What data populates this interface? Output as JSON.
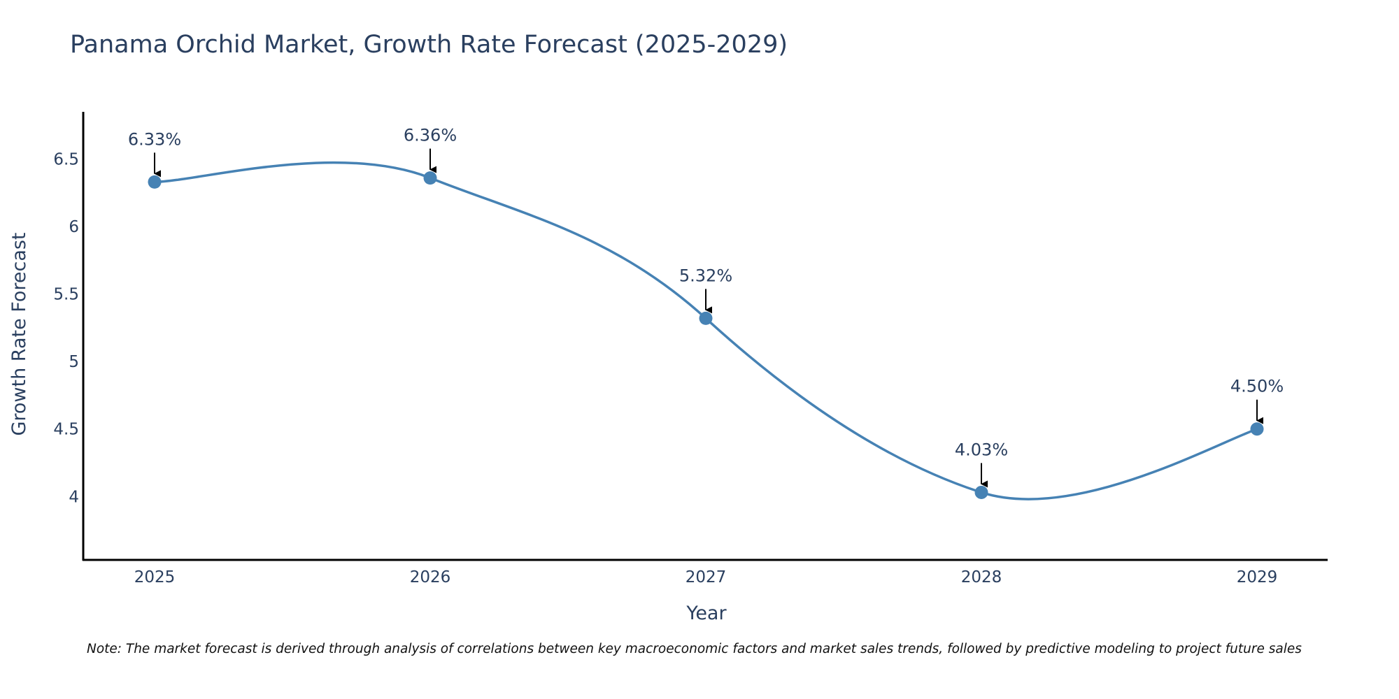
{
  "chart_data": {
    "type": "line",
    "title": "Panama Orchid Market, Growth Rate Forecast (2025-2029)",
    "xlabel": "Year",
    "ylabel": "Growth Rate Forecast",
    "x": [
      "2025",
      "2026",
      "2027",
      "2028",
      "2029"
    ],
    "series": [
      {
        "name": "Growth Rate Forecast",
        "values": [
          6.33,
          6.36,
          5.32,
          4.03,
          4.5
        ],
        "labels": [
          "6.33%",
          "6.36%",
          "5.32%",
          "4.03%",
          "4.50%"
        ],
        "color": "#4682b4"
      }
    ],
    "y_ticks": [
      4,
      4.5,
      5,
      5.5,
      6,
      6.5
    ],
    "y_tick_labels": [
      "4",
      "4.5",
      "5",
      "5.5",
      "6",
      "6.5"
    ],
    "ylim": [
      3.53,
      6.85
    ],
    "grid": false,
    "line_shape": "spline",
    "note": "Note: The market forecast is derived through analysis of correlations between key macroeconomic factors and market sales trends, followed by predictive modeling to project future sales"
  }
}
